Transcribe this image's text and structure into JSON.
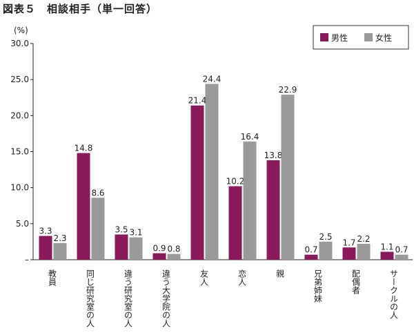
{
  "figure_title": "図表５　相談相手（単一回答）",
  "chart_data": {
    "type": "bar",
    "title": "",
    "ylabel": "(%)",
    "xlabel": "",
    "ylim": [
      0,
      30
    ],
    "yticks": [
      "30.0",
      "25.0",
      "20.0",
      "15.0",
      "10.0",
      "5.0",
      "–"
    ],
    "categories": [
      "教員",
      "同じ研究室の人",
      "違う研究室の人",
      "違う大学院の人",
      "友人",
      "恋人",
      "親",
      "兄弟姉妹",
      "配偶者",
      "サークルの人"
    ],
    "series": [
      {
        "name": "男性",
        "color": "#8b1a5a",
        "values": [
          3.3,
          14.8,
          3.5,
          0.9,
          21.4,
          10.2,
          13.8,
          0.7,
          1.7,
          1.1
        ],
        "labels": [
          "3.3",
          "14.8",
          "3.5",
          "0.9",
          "21.4",
          "10.2",
          "13.8",
          "0.7",
          "1.7",
          "1.1"
        ]
      },
      {
        "name": "女性",
        "color": "#9a9a9a",
        "values": [
          2.3,
          8.6,
          3.1,
          0.8,
          24.4,
          16.4,
          22.9,
          2.5,
          2.2,
          0.7
        ],
        "labels": [
          "2.3",
          "8.6",
          "3.1",
          "0.8",
          "24.4",
          "16.4",
          "22.9",
          "2.5",
          "2.2",
          "0.7"
        ]
      }
    ],
    "legend_position": "top-right",
    "grid": false
  }
}
